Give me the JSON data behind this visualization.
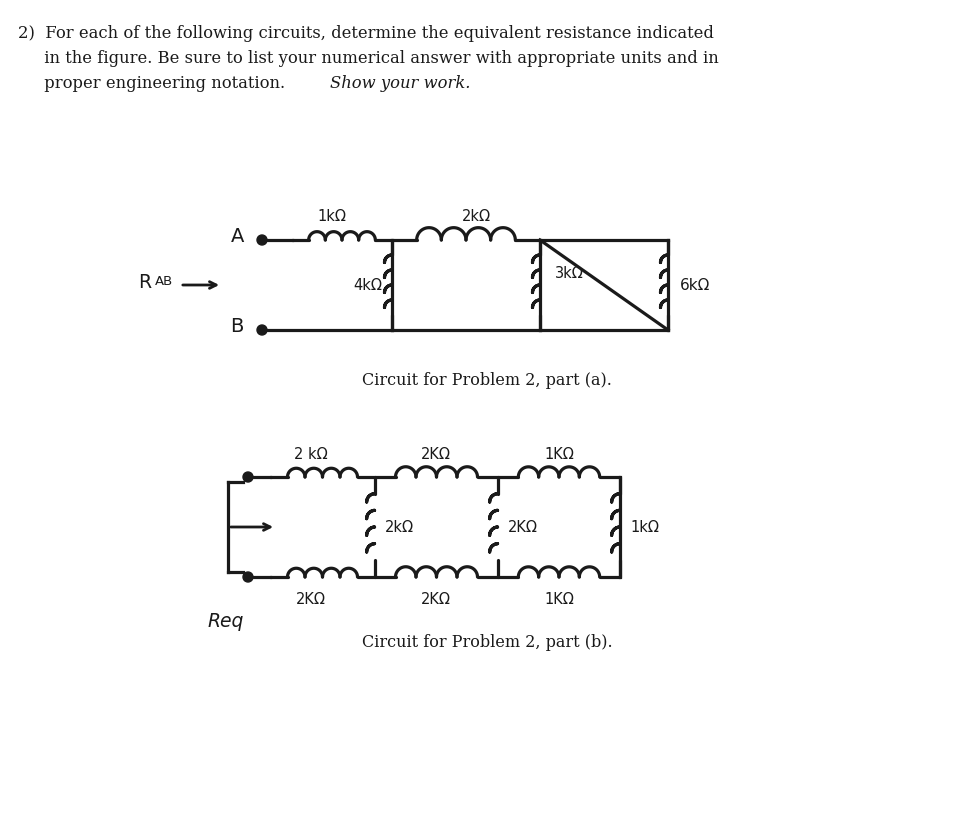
{
  "bg_color": "#ffffff",
  "text_color": "#1a1a1a",
  "lw": 2.0,
  "fig_w": 9.75,
  "fig_h": 8.32,
  "dpi": 100,
  "header_lines": [
    "2)  For each of the following circuits, determine the equivalent resistance indicated",
    "     in the figure. Be sure to list your numerical answer with appropriate units and in",
    "     proper engineering notation. "
  ],
  "header_italic": "Show your work.",
  "caption_a": "Circuit for Problem 2, part (a).",
  "caption_b": "Circuit for Problem 2, part (b)."
}
